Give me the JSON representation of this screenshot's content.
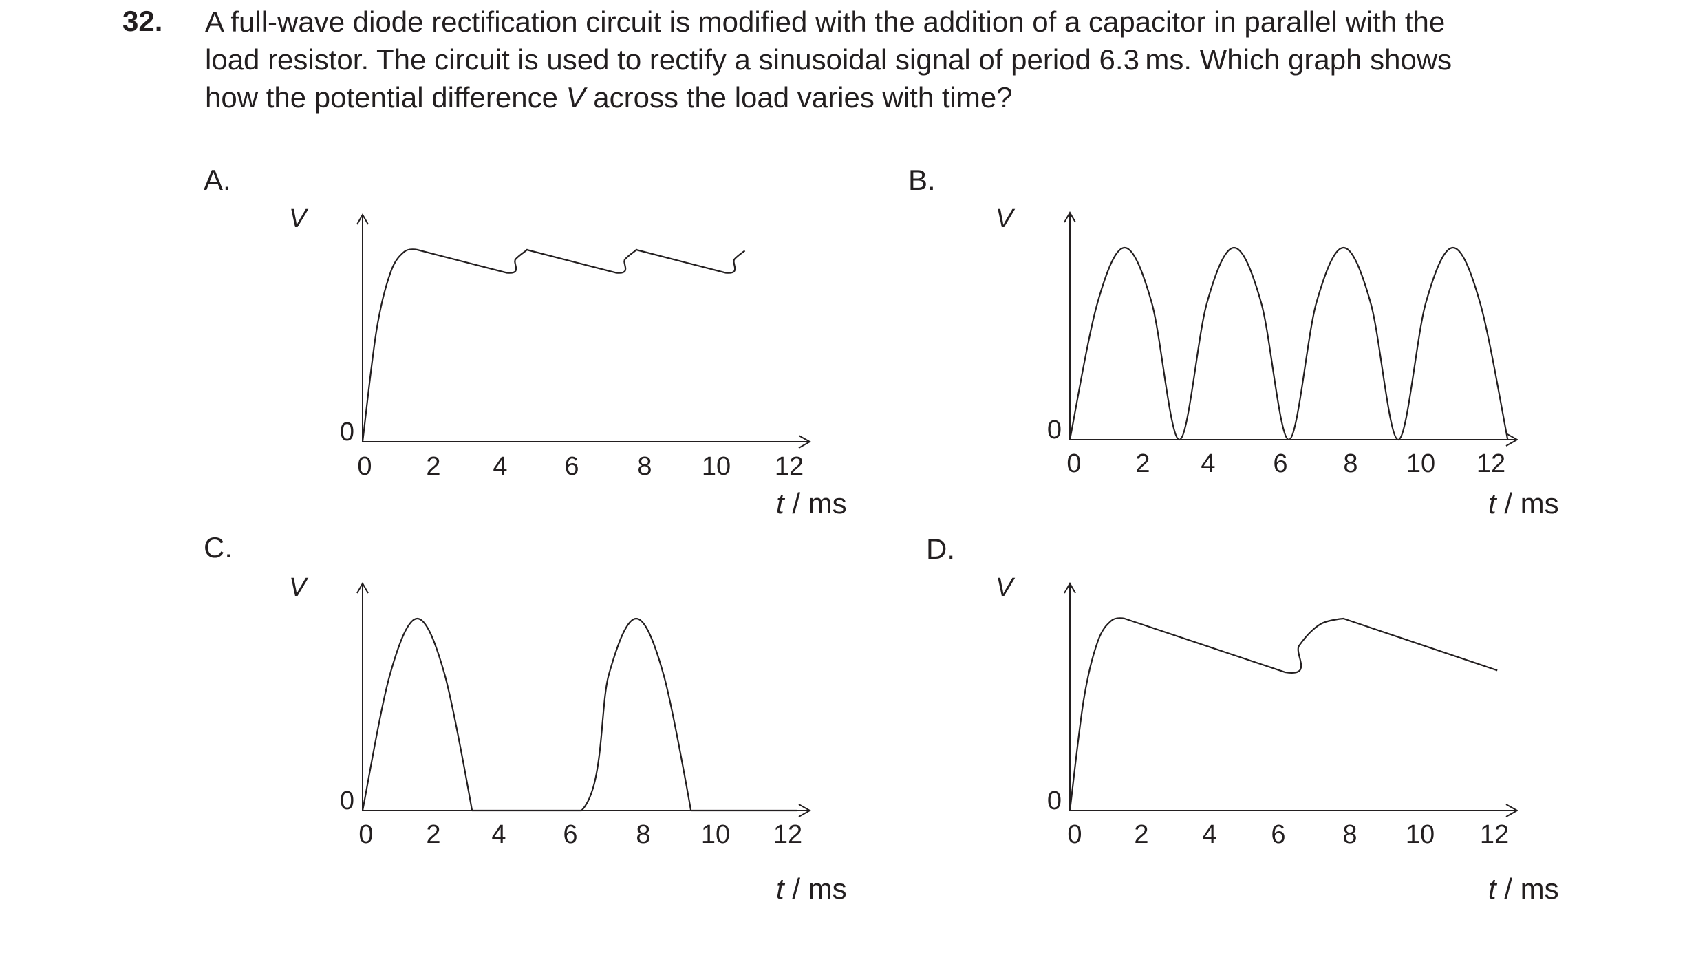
{
  "question": {
    "number": "32.",
    "line1": "A full-wave diode rectification circuit is modified with the addition of a capacitor in parallel with the",
    "line2": "load resistor.  The circuit is used to rectify a sinusoidal signal of period 6.3 ms.  Which graph shows",
    "line3_before": "how the potential difference ",
    "line3_symbol": "V",
    "line3_after": " across the load varies with time?"
  },
  "chart_data": [
    {
      "option": "A.",
      "type": "line",
      "ylabel": "V",
      "xlabel": "t / ms",
      "xticks": [
        "0",
        "2",
        "4",
        "6",
        "8",
        "10",
        "12"
      ],
      "y_origin_label": "0",
      "xlim": [
        0,
        12.5
      ],
      "ylim": [
        0,
        1
      ],
      "series": [
        {
          "x": [
            0,
            0.4,
            0.8,
            1.2,
            1.575,
            4.15,
            4.4,
            4.7,
            4.725,
            7.3,
            7.55,
            7.85,
            7.875,
            10.45,
            10.7,
            11.0
          ],
          "y": [
            0,
            0.58,
            0.88,
            0.99,
            1.0,
            0.88,
            0.95,
            0.995,
            1.0,
            0.88,
            0.95,
            0.995,
            1.0,
            0.88,
            0.95,
            0.995
          ]
        }
      ]
    },
    {
      "option": "B.",
      "type": "line",
      "ylabel": "V",
      "xlabel": "t / ms",
      "xticks": [
        "0",
        "2",
        "4",
        "6",
        "8",
        "10",
        "12"
      ],
      "y_origin_label": "0",
      "xlim": [
        0,
        12.5
      ],
      "ylim": [
        0,
        1
      ],
      "series": [
        {
          "x": [
            0,
            0.79,
            1.575,
            2.36,
            3.15,
            3.94,
            4.725,
            5.51,
            6.3,
            7.09,
            7.875,
            8.66,
            9.45,
            10.24,
            11.025,
            11.81,
            12.6
          ],
          "y": [
            0,
            0.71,
            1.0,
            0.71,
            0,
            0.71,
            1.0,
            0.71,
            0,
            0.71,
            1.0,
            0.71,
            0,
            0.71,
            1.0,
            0.71,
            0
          ]
        }
      ]
    },
    {
      "option": "C.",
      "type": "line",
      "ylabel": "V",
      "xlabel": "t / ms",
      "xticks": [
        "0",
        "2",
        "4",
        "6",
        "8",
        "10",
        "12"
      ],
      "y_origin_label": "0",
      "xlim": [
        0,
        12.5
      ],
      "ylim": [
        0,
        1
      ],
      "series": [
        {
          "x": [
            0,
            0.79,
            1.575,
            2.36,
            3.15,
            6.3,
            7.09,
            7.875,
            8.66,
            9.45,
            12.5
          ],
          "y": [
            0,
            0.71,
            1.0,
            0.71,
            0,
            0,
            0.71,
            1.0,
            0.71,
            0,
            0
          ]
        }
      ]
    },
    {
      "option": "D.",
      "type": "line",
      "ylabel": "V",
      "xlabel": "t / ms",
      "xticks": [
        "0",
        "2",
        "4",
        "6",
        "8",
        "10",
        "12"
      ],
      "y_origin_label": "0",
      "xlim": [
        0,
        12.5
      ],
      "ylim": [
        0,
        1
      ],
      "series": [
        {
          "x": [
            0,
            0.4,
            0.8,
            1.2,
            1.575,
            6.2,
            6.6,
            7.2,
            7.875,
            12.3
          ],
          "y": [
            0,
            0.58,
            0.88,
            0.99,
            1.0,
            0.72,
            0.86,
            0.97,
            1.0,
            0.73
          ]
        }
      ]
    }
  ]
}
